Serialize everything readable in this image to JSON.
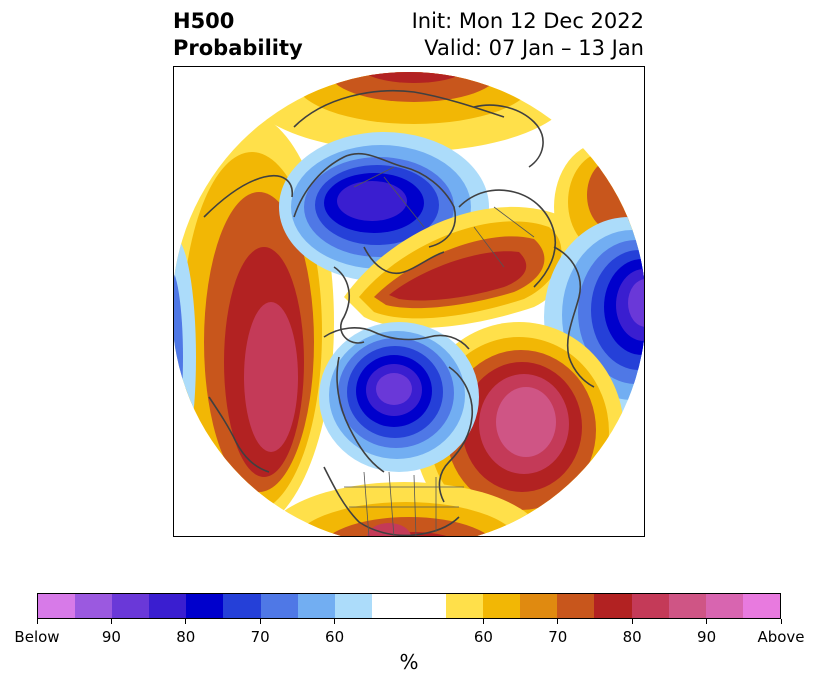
{
  "title": {
    "left_line1": "H500",
    "left_line2": "Probability",
    "right_line1": "Init: Mon 12 Dec 2022",
    "right_line2": "Valid: 07 Jan – 13 Jan"
  },
  "colorbar": {
    "unit": "%",
    "colors": [
      "#d77ae8",
      "#9b59e0",
      "#6a38d8",
      "#3a1ed0",
      "#0000cc",
      "#2540d8",
      "#4f78e6",
      "#72aef2",
      "#acdcfa",
      "#ffffff",
      "#ffffff",
      "#ffe04a",
      "#f2b705",
      "#e08a10",
      "#c8561c",
      "#b22222",
      "#c43a58",
      "#cf5585",
      "#d865b0",
      "#e87adf"
    ],
    "tick_labels": [
      "Below",
      "90",
      "80",
      "70",
      "60",
      "60",
      "70",
      "80",
      "90",
      "Above"
    ]
  },
  "map": {
    "colors": {
      "below_strong": "#6a38d8",
      "below_mid": "#0000cc",
      "below_weak": "#72aef2",
      "below_faint": "#acdcfa",
      "above_faint": "#ffe04a",
      "above_weak": "#f2b705",
      "above_mid": "#c8561c",
      "above_strong": "#b22222",
      "above_max": "#cf5585",
      "coast": "#404040"
    }
  }
}
